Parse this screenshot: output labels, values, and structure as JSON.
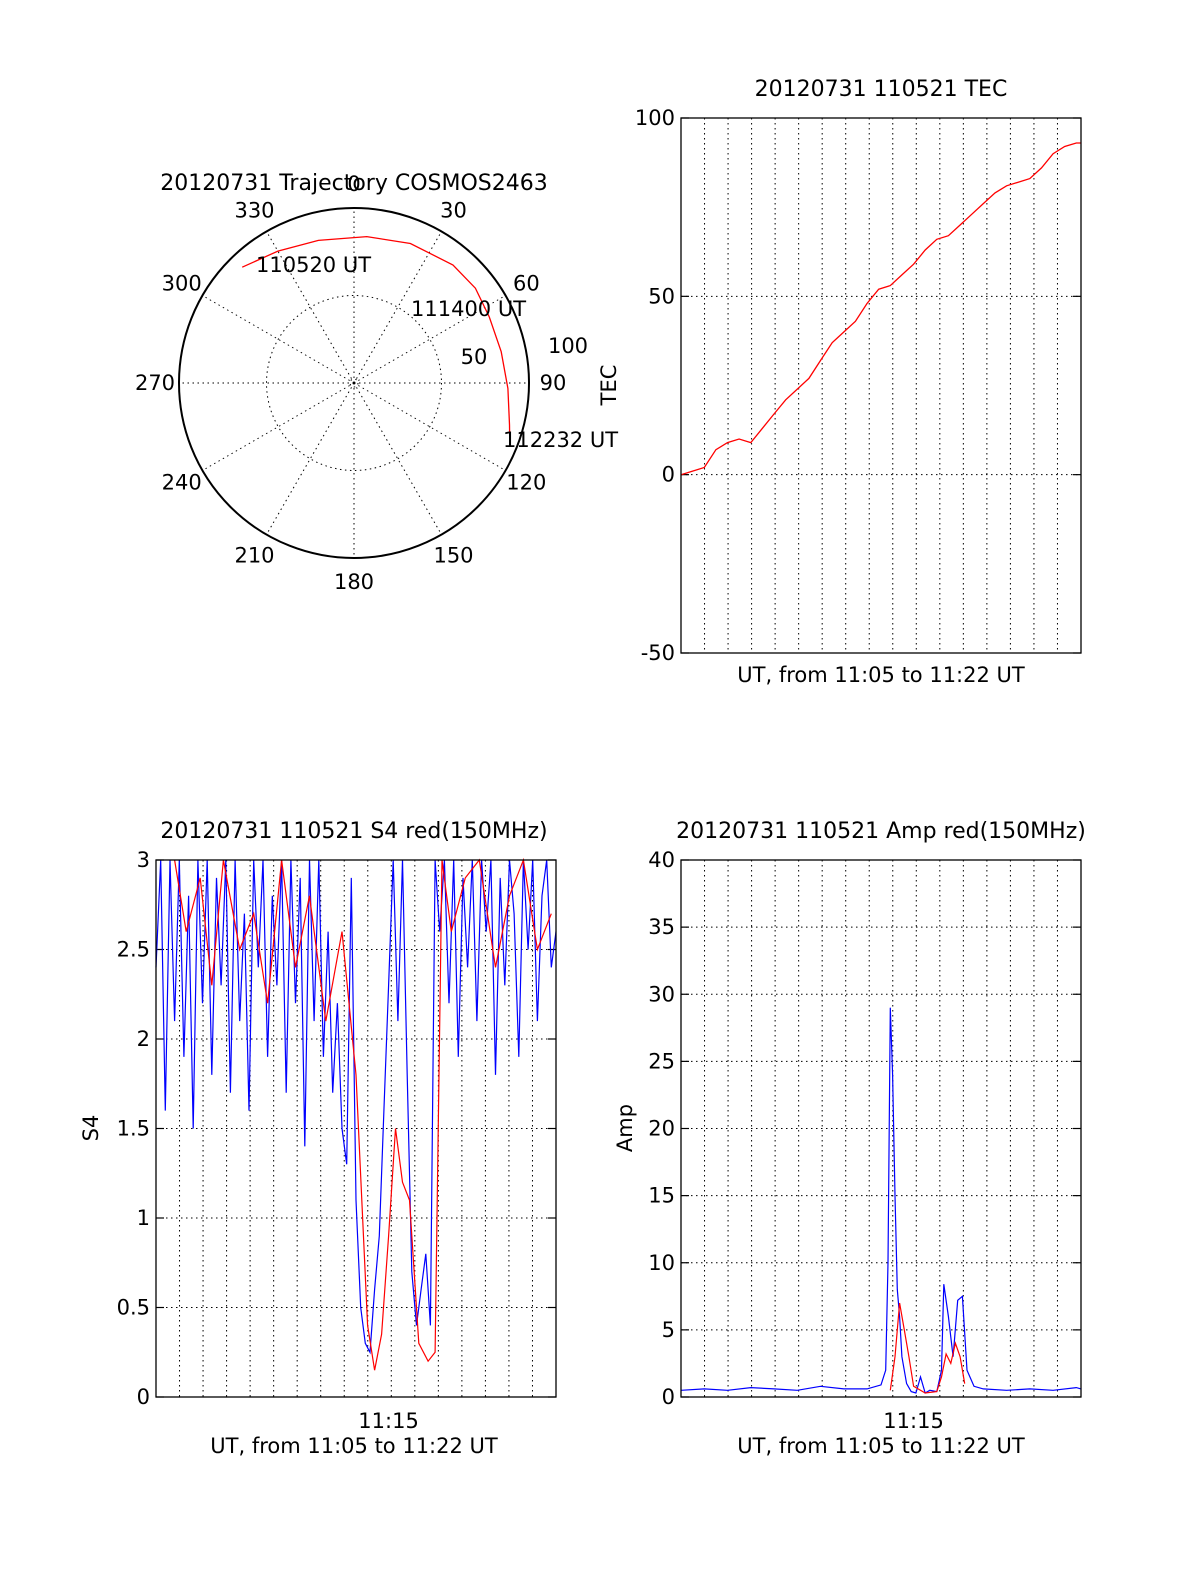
{
  "chart_data": [
    {
      "type": "scatter",
      "subtype": "polar",
      "title": "20120731 Trajectory COSMOS2463",
      "azimuth_labels": [
        "0",
        "30",
        "60",
        "90",
        "120",
        "150",
        "180",
        "210",
        "240",
        "270",
        "300",
        "330"
      ],
      "radius_labels": [
        "50",
        "100"
      ],
      "radius_range": [
        0,
        100
      ],
      "grid": true,
      "series": [
        {
          "color": "#ff0000",
          "points": [
            {
              "az": 316,
              "r": 92
            },
            {
              "az": 330,
              "r": 87
            },
            {
              "az": 346,
              "r": 84
            },
            {
              "az": 5,
              "r": 84
            },
            {
              "az": 22,
              "r": 86
            },
            {
              "az": 40,
              "r": 88
            },
            {
              "az": 52,
              "r": 88
            },
            {
              "az": 64,
              "r": 86
            },
            {
              "az": 78,
              "r": 86
            },
            {
              "az": 92,
              "r": 88
            },
            {
              "az": 105,
              "r": 92
            },
            {
              "az": 112,
              "r": 96
            }
          ]
        }
      ],
      "annotations": [
        {
          "text": "110520 UT",
          "az": 316,
          "r": 92
        },
        {
          "text": "111400 UT",
          "az": 60,
          "r": 88
        },
        {
          "text": "112232 UT",
          "az": 112,
          "r": 96
        }
      ]
    },
    {
      "type": "line",
      "title": "20120731 110521 TEC",
      "ylabel": "TEC",
      "xlabel": "UT, from 11:05 to 11:22 UT",
      "ylim": [
        -50,
        100
      ],
      "yticks": [
        "-50",
        "0",
        "50",
        "100"
      ],
      "xlim_minutes": [
        0,
        17.2
      ],
      "grid": true,
      "series": [
        {
          "color": "#ff0000",
          "x": [
            0,
            0.5,
            1,
            1.5,
            2,
            2.5,
            3,
            3.5,
            4,
            4.5,
            5,
            5.5,
            6,
            6.5,
            7,
            7.5,
            8,
            8.5,
            9,
            9.5,
            10,
            10.5,
            11,
            11.5,
            12,
            12.5,
            13,
            13.5,
            14,
            14.5,
            15,
            15.5,
            16,
            16.5,
            17,
            17.2
          ],
          "y": [
            0,
            1,
            2,
            7,
            9,
            10,
            9,
            13,
            17,
            21,
            24,
            27,
            32,
            37,
            40,
            43,
            48,
            52,
            53,
            56,
            59,
            63,
            66,
            67,
            70,
            73,
            76,
            79,
            81,
            82,
            83,
            86,
            90,
            92,
            93,
            93
          ]
        }
      ]
    },
    {
      "type": "line",
      "title": "20120731 110521 S4 red(150MHz)",
      "ylabel": "S4",
      "xlabel": "UT, from 11:05 to 11:22 UT",
      "ylim": [
        0,
        3
      ],
      "yticks": [
        "0",
        "0.5",
        "1",
        "1.5",
        "2",
        "2.5",
        "3"
      ],
      "xlim_minutes": [
        0,
        17.2
      ],
      "xticks": [
        {
          "at": 10,
          "label": "11:15"
        }
      ],
      "grid": true,
      "series": [
        {
          "color": "#0000ff",
          "x": [
            0,
            0.2,
            0.4,
            0.6,
            0.8,
            1,
            1.2,
            1.4,
            1.6,
            1.8,
            2,
            2.2,
            2.4,
            2.6,
            2.8,
            3,
            3.2,
            3.4,
            3.6,
            3.8,
            4,
            4.2,
            4.4,
            4.6,
            4.8,
            5,
            5.2,
            5.4,
            5.6,
            5.8,
            6,
            6.2,
            6.4,
            6.6,
            6.8,
            7,
            7.2,
            7.4,
            7.6,
            7.8,
            8,
            8.2,
            8.4,
            8.6,
            8.8,
            9,
            9.2,
            9.4,
            9.6,
            9.8,
            10,
            10.2,
            10.4,
            10.6,
            10.8,
            11,
            11.2,
            11.4,
            11.6,
            11.8,
            12,
            12.2,
            12.4,
            12.6,
            12.8,
            13,
            13.2,
            13.4,
            13.6,
            13.8,
            14,
            14.2,
            14.4,
            14.6,
            14.8,
            15,
            15.2,
            15.4,
            15.6,
            15.8,
            16,
            16.2,
            16.4,
            16.6,
            16.8,
            17,
            17.2
          ],
          "y": [
            2.4,
            3,
            1.6,
            3,
            2.1,
            3,
            1.9,
            2.8,
            1.5,
            3,
            2.2,
            3,
            1.8,
            2.9,
            2.3,
            3,
            1.7,
            3,
            2.1,
            2.7,
            1.6,
            3,
            2.4,
            3,
            1.9,
            2.8,
            2.3,
            3,
            1.7,
            3,
            2.2,
            2.9,
            1.4,
            3,
            2.1,
            3,
            1.9,
            2.6,
            1.7,
            2.2,
            1.5,
            1.3,
            2.9,
            1.1,
            0.5,
            0.3,
            0.25,
            0.6,
            0.9,
            1.6,
            2.3,
            3,
            2.1,
            3,
            1.8,
            0.7,
            0.4,
            0.6,
            0.8,
            0.4,
            3,
            2.6,
            3,
            2.2,
            3,
            1.9,
            2.9,
            2.4,
            3,
            2.1,
            3,
            2.6,
            3,
            1.8,
            2.9,
            2.3,
            3,
            2.7,
            1.9,
            3,
            2.5,
            3,
            2.1,
            2.8,
            3,
            2.4,
            2.6
          ]
        },
        {
          "color": "#ff0000",
          "x": [
            0.8,
            1.3,
            1.9,
            2.4,
            2.9,
            3.6,
            4.2,
            4.8,
            5.4,
            6,
            6.6,
            7.3,
            8,
            8.6,
            9.1,
            9.4,
            9.7,
            10,
            10.3,
            10.6,
            10.9,
            11.3,
            11.7,
            12,
            12.3,
            12.7,
            13.3,
            13.9,
            14.6,
            15.2,
            15.8,
            16.4,
            17
          ],
          "y": [
            3,
            2.6,
            2.9,
            2.3,
            3,
            2.5,
            2.7,
            2.2,
            3,
            2.4,
            2.8,
            2.1,
            2.6,
            1.8,
            0.4,
            0.15,
            0.35,
            0.9,
            1.5,
            1.2,
            1.1,
            0.3,
            0.2,
            0.25,
            3,
            2.6,
            2.9,
            3,
            2.4,
            2.8,
            3,
            2.5,
            2.7
          ]
        }
      ]
    },
    {
      "type": "line",
      "title": "20120731 110521 Amp red(150MHz)",
      "ylabel": "Amp",
      "xlabel": "UT, from 11:05 to 11:22 UT",
      "ylim": [
        0,
        40
      ],
      "yticks": [
        "0",
        "5",
        "10",
        "15",
        "20",
        "25",
        "30",
        "35",
        "40"
      ],
      "xlim_minutes": [
        0,
        17.2
      ],
      "xticks": [
        {
          "at": 10,
          "label": "11:15"
        }
      ],
      "grid": true,
      "series": [
        {
          "color": "#0000ff",
          "x": [
            0,
            1,
            2,
            3,
            4,
            5,
            6,
            7,
            8,
            8.6,
            8.8,
            8.9,
            9.0,
            9.1,
            9.2,
            9.3,
            9.4,
            9.5,
            9.7,
            9.9,
            10.1,
            10.3,
            10.5,
            10.7,
            11.0,
            11.2,
            11.3,
            11.5,
            11.7,
            11.9,
            12.1,
            12.3,
            12.6,
            13,
            14,
            15,
            16,
            17,
            17.2
          ],
          "y": [
            0.5,
            0.6,
            0.5,
            0.7,
            0.6,
            0.5,
            0.8,
            0.6,
            0.6,
            0.9,
            2,
            10,
            29,
            24,
            15,
            8,
            6,
            3,
            1,
            0.4,
            0.3,
            1.5,
            0.3,
            0.5,
            0.4,
            2,
            8.4,
            6,
            3,
            7.2,
            7.5,
            2,
            0.8,
            0.6,
            0.5,
            0.6,
            0.5,
            0.7,
            0.6
          ]
        },
        {
          "color": "#ff0000",
          "x": [
            9.0,
            9.2,
            9.4,
            9.6,
            9.8,
            10.0,
            10.5,
            11.0,
            11.2,
            11.4,
            11.6,
            11.8,
            12.0,
            12.2
          ],
          "y": [
            0.5,
            3,
            7,
            5,
            3,
            0.8,
            0.3,
            0.4,
            1.5,
            3.2,
            2.5,
            4,
            3,
            1
          ]
        }
      ]
    }
  ]
}
